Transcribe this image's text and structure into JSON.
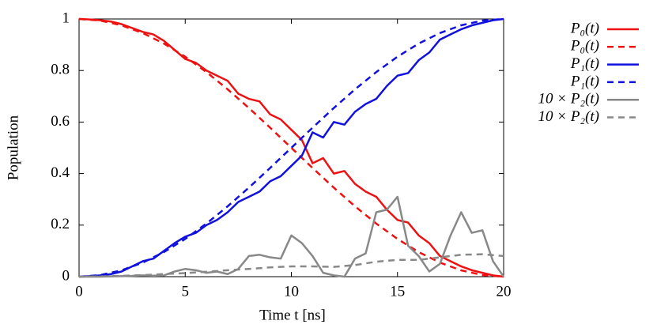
{
  "chart_data": {
    "type": "line",
    "xlabel": "Time t [ns]",
    "ylabel": "Population",
    "xlim": [
      0,
      20
    ],
    "ylim": [
      0,
      1
    ],
    "xticks": [
      0,
      5,
      10,
      15,
      20
    ],
    "yticks": [
      0,
      0.2,
      0.4,
      0.6,
      0.8,
      1
    ],
    "legend": "outside-right",
    "series": [
      {
        "name": "P₀(t)",
        "color": "#ee1111",
        "style": "solid",
        "x": [
          0,
          0.5,
          1,
          1.5,
          2,
          2.5,
          3,
          3.5,
          4,
          4.5,
          5,
          5.5,
          6,
          6.5,
          7,
          7.5,
          8,
          8.5,
          9,
          9.5,
          10,
          10.5,
          11,
          11.5,
          12,
          12.5,
          13,
          13.5,
          14,
          14.5,
          15,
          15.5,
          16,
          16.5,
          17,
          17.5,
          18,
          18.5,
          19,
          19.5,
          20
        ],
        "values": [
          1,
          0.998,
          0.995,
          0.99,
          0.98,
          0.965,
          0.95,
          0.94,
          0.915,
          0.88,
          0.845,
          0.83,
          0.8,
          0.78,
          0.76,
          0.71,
          0.69,
          0.68,
          0.63,
          0.61,
          0.57,
          0.53,
          0.44,
          0.46,
          0.4,
          0.41,
          0.36,
          0.33,
          0.31,
          0.26,
          0.22,
          0.21,
          0.16,
          0.13,
          0.08,
          0.06,
          0.04,
          0.025,
          0.015,
          0.005,
          0
        ]
      },
      {
        "name": "P₀(t)",
        "color": "#ee1111",
        "style": "dashed",
        "x": [
          0,
          1,
          2,
          3,
          4,
          5,
          6,
          7,
          8,
          9,
          10,
          11,
          12,
          13,
          14,
          15,
          16,
          17,
          18,
          19,
          20
        ],
        "values": [
          1,
          0.9938,
          0.9755,
          0.9455,
          0.9045,
          0.8536,
          0.7939,
          0.727,
          0.6545,
          0.5782,
          0.5,
          0.4218,
          0.3455,
          0.273,
          0.2061,
          0.1464,
          0.0955,
          0.0545,
          0.0245,
          0.0062,
          0
        ]
      },
      {
        "name": "P₁(t)",
        "color": "#1111dd",
        "style": "solid",
        "x": [
          0,
          0.5,
          1,
          1.5,
          2,
          2.5,
          3,
          3.5,
          4,
          4.5,
          5,
          5.5,
          6,
          6.5,
          7,
          7.5,
          8,
          8.5,
          9,
          9.5,
          10,
          10.5,
          11,
          11.5,
          12,
          12.5,
          13,
          13.5,
          14,
          14.5,
          15,
          15.5,
          16,
          16.5,
          17,
          17.5,
          18,
          18.5,
          19,
          19.5,
          20
        ],
        "values": [
          0,
          0.002,
          0.005,
          0.01,
          0.02,
          0.04,
          0.06,
          0.07,
          0.1,
          0.13,
          0.155,
          0.17,
          0.2,
          0.22,
          0.25,
          0.29,
          0.31,
          0.33,
          0.37,
          0.39,
          0.43,
          0.47,
          0.56,
          0.54,
          0.6,
          0.59,
          0.64,
          0.67,
          0.69,
          0.74,
          0.78,
          0.79,
          0.84,
          0.87,
          0.92,
          0.94,
          0.96,
          0.975,
          0.985,
          0.995,
          1
        ]
      },
      {
        "name": "P₁(t)",
        "color": "#1111dd",
        "style": "dashed",
        "x": [
          0,
          1,
          2,
          3,
          4,
          5,
          6,
          7,
          8,
          9,
          10,
          11,
          12,
          13,
          14,
          15,
          16,
          17,
          18,
          19,
          20
        ],
        "values": [
          0,
          0.0062,
          0.0245,
          0.0545,
          0.0955,
          0.1464,
          0.2061,
          0.273,
          0.3455,
          0.4218,
          0.5,
          0.5782,
          0.6545,
          0.727,
          0.7939,
          0.8536,
          0.9045,
          0.9455,
          0.9755,
          0.9938,
          1
        ]
      },
      {
        "name": "10 × P₂(t)",
        "color": "#888888",
        "style": "solid",
        "x": [
          0,
          0.5,
          1,
          1.5,
          2,
          2.5,
          3,
          3.5,
          4,
          4.5,
          5,
          5.5,
          6,
          6.5,
          7,
          7.5,
          8,
          8.5,
          9,
          9.5,
          10,
          10.5,
          11,
          11.5,
          12,
          12.5,
          13,
          13.5,
          14,
          14.5,
          15,
          15.5,
          16,
          16.5,
          17,
          17.5,
          18,
          18.5,
          19,
          19.5,
          20
        ],
        "values": [
          0,
          0,
          0,
          0.001,
          0.002,
          0.003,
          0.005,
          0.004,
          0.005,
          0.02,
          0.03,
          0.025,
          0.015,
          0.02,
          0.01,
          0.03,
          0.08,
          0.085,
          0.075,
          0.07,
          0.16,
          0.13,
          0.08,
          0.015,
          0.005,
          0,
          0.07,
          0.09,
          0.25,
          0.26,
          0.31,
          0.12,
          0.08,
          0.02,
          0.05,
          0.16,
          0.25,
          0.17,
          0.18,
          0.06,
          0
        ]
      },
      {
        "name": "10 × P₂(t)",
        "color": "#888888",
        "style": "dashed",
        "x": [
          0,
          1,
          2,
          3,
          4,
          5,
          6,
          7,
          8,
          9,
          10,
          11,
          12,
          13,
          14,
          15,
          16,
          17,
          18,
          19,
          20
        ],
        "values": [
          0,
          0.001,
          0.003,
          0.006,
          0.01,
          0.014,
          0.019,
          0.025,
          0.03,
          0.036,
          0.04,
          0.04,
          0.038,
          0.045,
          0.058,
          0.065,
          0.065,
          0.075,
          0.085,
          0.087,
          0.08
        ]
      }
    ]
  }
}
